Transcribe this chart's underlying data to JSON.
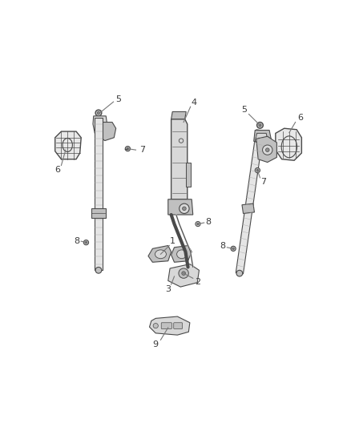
{
  "bg_color": "#ffffff",
  "line_color": "#4a4a4a",
  "fill_light": "#d8d8d8",
  "fill_mid": "#c0c0c0",
  "fill_dark": "#909090",
  "label_color": "#3a3a3a",
  "fig_width": 4.38,
  "fig_height": 5.33,
  "dpi": 100,
  "xlim": [
    0,
    438
  ],
  "ylim": [
    0,
    533
  ]
}
